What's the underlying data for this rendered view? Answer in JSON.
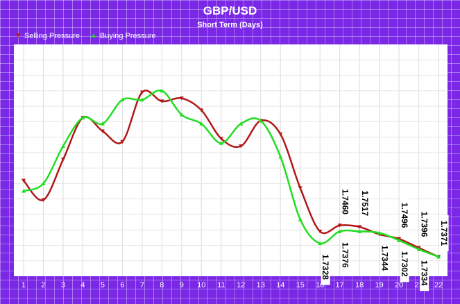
{
  "chart_data": {
    "type": "line",
    "title": "GBP/USD",
    "subtitle": "Short Term (Days)",
    "xlabel": "",
    "ylabel": "",
    "legend_placement": "top-left",
    "grid": true,
    "categories": [
      "1",
      "2",
      "3",
      "4",
      "5",
      "6",
      "7",
      "8",
      "9",
      "10",
      "11",
      "12",
      "13",
      "14",
      "15",
      "16",
      "17",
      "18",
      "19",
      "20",
      "21",
      "22"
    ],
    "ylim": [
      1.723,
      1.878
    ],
    "series": [
      {
        "name": "Selling Pressure",
        "color": "#b01818",
        "marker": "triangle-down",
        "values": [
          1.787,
          1.774,
          1.801,
          1.829,
          1.82,
          1.813,
          1.846,
          1.84,
          1.842,
          1.834,
          1.815,
          1.81,
          1.827,
          1.818,
          1.782,
          1.753,
          1.757,
          1.756,
          1.751,
          1.748,
          1.742,
          1.736
        ]
      },
      {
        "name": "Buying Pressure",
        "color": "#22dd22",
        "marker": "triangle-up",
        "values": [
          1.78,
          1.785,
          1.81,
          1.829,
          1.825,
          1.841,
          1.841,
          1.847,
          1.831,
          1.825,
          1.812,
          1.825,
          1.827,
          1.803,
          1.761,
          1.745,
          1.753,
          1.753,
          1.752,
          1.747,
          1.741,
          1.736
        ]
      }
    ],
    "value_labels": [
      {
        "text": "1.7460",
        "x_index": 16,
        "side": "above"
      },
      {
        "text": "1.7517",
        "x_index": 17,
        "side": "above"
      },
      {
        "text": "1.7496",
        "x_index": 19,
        "side": "above"
      },
      {
        "text": "1.7396",
        "x_index": 20,
        "side": "above"
      },
      {
        "text": "1.7371",
        "x_index": 21,
        "side": "above"
      },
      {
        "text": "1.7328",
        "x_index": 15,
        "side": "below"
      },
      {
        "text": "1.7376",
        "x_index": 16,
        "side": "below"
      },
      {
        "text": "1.7344",
        "x_index": 18,
        "side": "below"
      },
      {
        "text": "1.7302",
        "x_index": 19,
        "side": "below"
      },
      {
        "text": "1.7334",
        "x_index": 20,
        "side": "below"
      }
    ]
  }
}
